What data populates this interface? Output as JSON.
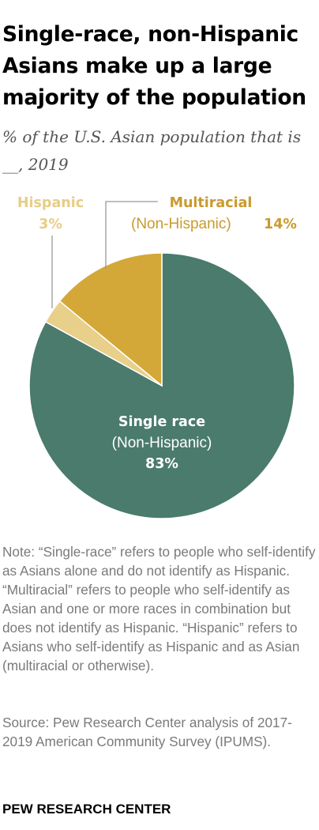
{
  "header": {
    "title": "Single-race, non-Hispanic Asians make up a large majority of the population",
    "subtitle": "% of the U.S. Asian population that is __, 2019"
  },
  "chart_data": {
    "type": "pie",
    "title": "Single-race, non-Hispanic Asians make up a large majority of the population",
    "subtitle": "% of the U.S. Asian population that is __, 2019",
    "slices": [
      {
        "label": "Single race",
        "sublabel": "(Non-Hispanic)",
        "value": 83,
        "value_label": "83%",
        "color": "#4a7b6d"
      },
      {
        "label": "Hispanic",
        "sublabel": "",
        "value": 3,
        "value_label": "3%",
        "color": "#e8cf8a"
      },
      {
        "label": "Multiracial",
        "sublabel": "(Non-Hispanic)",
        "value": 14,
        "value_label": "14%",
        "color": "#d4a838"
      }
    ],
    "slice_order": "clockwise from 12 o'clock: Single race, Hispanic, Multiracial"
  },
  "colors": {
    "single_race": "#4a7b6d",
    "hispanic": "#e8cf8a",
    "multiracial": "#d4a838",
    "label_light": "#e6cd86",
    "label_gold": "#c99a2e",
    "leader_line": "#999999",
    "note_text": "#7a7a7a"
  },
  "footer": {
    "note": "Note: “Single-race” refers to people who self-identify as Asians alone and do not identify as Hispanic. “Multiracial” refers to people who self-identify as Asian and one or more races in combination but does not identify as Hispanic. “Hispanic” refers to Asians who self-identify as Hispanic and as Asian (multiracial or otherwise).",
    "source": "Source: Pew Research Center analysis of 2017-2019 American Community Survey (IPUMS).",
    "org": "PEW RESEARCH CENTER"
  }
}
